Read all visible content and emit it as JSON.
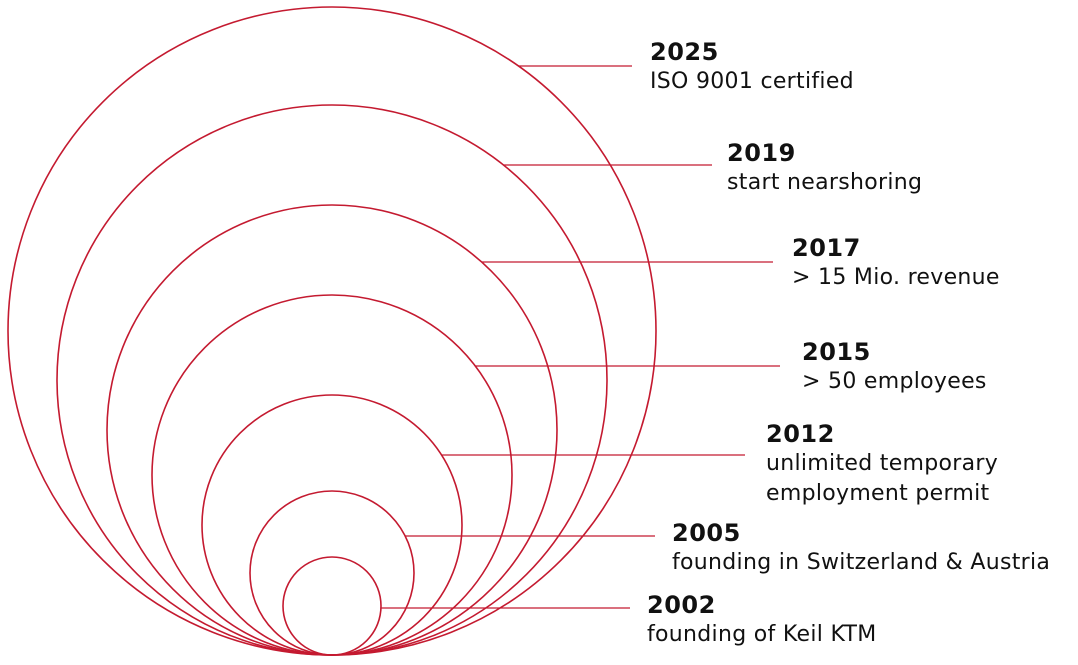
{
  "colors": {
    "accent": "#c41a30",
    "text": "#111111"
  },
  "milestones": [
    {
      "year": "2025",
      "text": "ISO 9001 certified"
    },
    {
      "year": "2019",
      "text": "start nearshoring"
    },
    {
      "year": "2017",
      "text": "> 15 Mio. revenue"
    },
    {
      "year": "2015",
      "text": "> 50 employees"
    },
    {
      "year": "2012",
      "text": "unlimited temporary employment permit"
    },
    {
      "year": "2005",
      "text": "founding in Switzerland & Austria"
    },
    {
      "year": "2002",
      "text": "founding of Keil KTM"
    }
  ]
}
